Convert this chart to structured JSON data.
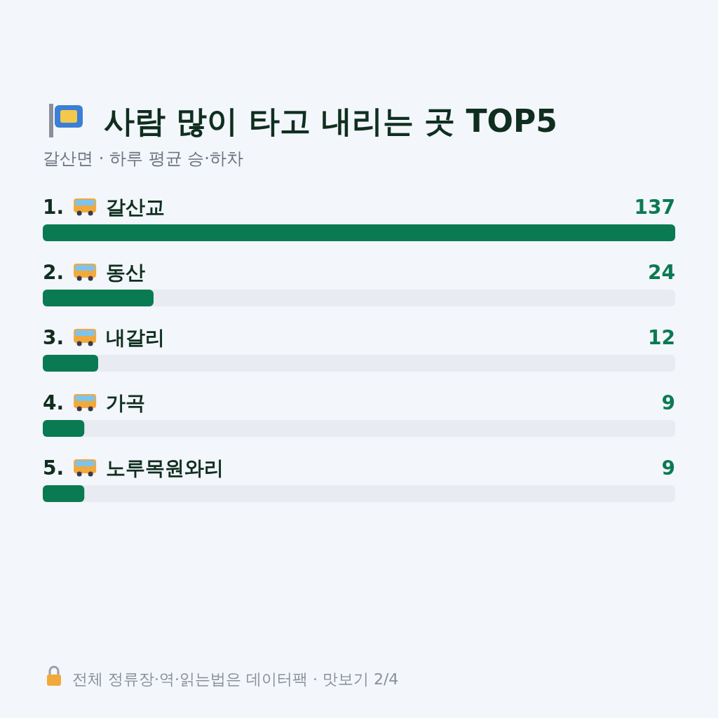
{
  "chart_data": {
    "type": "bar",
    "orientation": "horizontal",
    "title": "사람 많이 타고 내리는 곳 TOP5",
    "subtitle": "갈산면 · 하루 평균 승·하차",
    "categories": [
      "1. 갈산교",
      "2. 동산",
      "3. 내갈리",
      "4. 가곡",
      "5. 노루목원와리"
    ],
    "values": [
      137,
      24,
      12,
      9,
      9
    ],
    "color": "#0a7a52",
    "data_labels": true,
    "annotations": [
      "전체 정류장·역·읽는법은 데이터팩 · 맛보기 2/4"
    ]
  }
}
